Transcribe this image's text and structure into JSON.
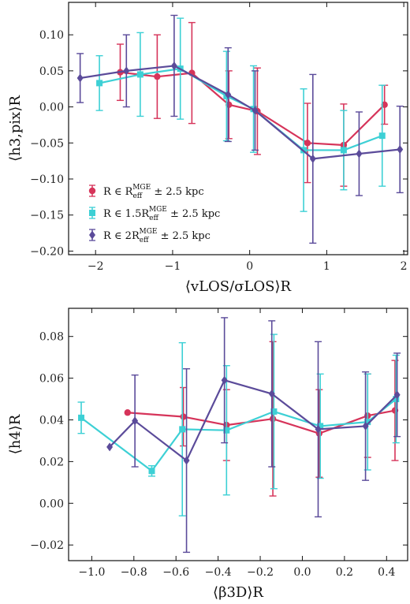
{
  "chart_data": [
    {
      "type": "line",
      "xlabel": "⟨vLOS/σLOS⟩R",
      "ylabel": "⟨h3,pix⟩R",
      "xlim": [
        -2.35,
        2.05
      ],
      "ylim": [
        -0.205,
        0.145
      ],
      "xticks": [
        -2,
        -1,
        0,
        1,
        2
      ],
      "xtick_labels": [
        "−2",
        "−1",
        "0",
        "1",
        "2"
      ],
      "yticks": [
        -0.2,
        -0.15,
        -0.1,
        -0.05,
        0.0,
        0.05,
        0.1
      ],
      "ytick_labels": [
        "−0.20",
        "−0.15",
        "−0.10",
        "−0.05",
        "0.00",
        "0.05",
        "0.10"
      ],
      "legend_position": "lower-left",
      "series": [
        {
          "name": "R ∈ R_eff^MGE ± 2.5 kpc",
          "legend_parts": [
            "R ∈ R",
            "eff",
            "MGE",
            " ± 2.5 kpc"
          ],
          "color": "#d6345a",
          "marker": "circle",
          "x": [
            -1.68,
            -1.2,
            -0.75,
            -0.27,
            0.1,
            0.75,
            1.22,
            1.75
          ],
          "y": [
            0.048,
            0.042,
            0.047,
            0.003,
            -0.006,
            -0.05,
            -0.053,
            0.003
          ],
          "err": [
            0.039,
            0.058,
            0.07,
            0.047,
            0.06,
            0.055,
            0.057,
            0.027
          ]
        },
        {
          "name": "R ∈ 1.5R_eff^MGE ± 2.5 kpc",
          "legend_parts": [
            "R ∈ 1.5R",
            "eff",
            "MGE",
            " ± 2.5 kpc"
          ],
          "color": "#3dd0d5",
          "marker": "square",
          "x": [
            -1.95,
            -1.42,
            -0.9,
            -0.3,
            0.05,
            0.7,
            1.22,
            1.72
          ],
          "y": [
            0.033,
            0.045,
            0.053,
            0.015,
            -0.003,
            -0.06,
            -0.06,
            -0.04
          ],
          "err": [
            0.038,
            0.058,
            0.07,
            0.062,
            0.06,
            0.085,
            0.055,
            0.07
          ]
        },
        {
          "name": "R ∈ 2R_eff^MGE ± 2.5 kpc",
          "legend_parts": [
            "R ∈ 2R",
            "eff",
            "MGE",
            " ± 2.5 kpc"
          ],
          "color": "#5b4b9a",
          "marker": "diamond",
          "x": [
            -2.2,
            -1.6,
            -0.98,
            -0.28,
            0.07,
            0.82,
            1.42,
            1.95
          ],
          "y": [
            0.04,
            0.05,
            0.057,
            0.017,
            -0.005,
            -0.072,
            -0.065,
            -0.059
          ],
          "err": [
            0.034,
            0.05,
            0.07,
            0.065,
            0.055,
            0.117,
            0.058,
            0.06
          ]
        }
      ]
    },
    {
      "type": "line",
      "xlabel": "⟨β3D⟩R",
      "ylabel": "⟨h4⟩R",
      "xlim": [
        -1.11,
        0.5
      ],
      "ylim": [
        -0.0275,
        0.0935
      ],
      "xticks": [
        -1.0,
        -0.8,
        -0.6,
        -0.4,
        -0.2,
        0.0,
        0.2,
        0.4
      ],
      "xtick_labels": [
        "−1.0",
        "−0.8",
        "−0.6",
        "−0.4",
        "−0.2",
        "0.0",
        "0.2",
        "0.4"
      ],
      "yticks": [
        -0.02,
        0.0,
        0.02,
        0.04,
        0.06,
        0.08
      ],
      "ytick_labels": [
        "−0.02",
        "0.00",
        "0.02",
        "0.04",
        "0.06",
        "0.08"
      ],
      "series": [
        {
          "name": "R ∈ R_eff^MGE ± 2.5 kpc",
          "color": "#d6345a",
          "marker": "circle",
          "x": [
            -0.83,
            -0.565,
            -0.36,
            -0.14,
            0.08,
            0.31,
            0.44
          ],
          "y": [
            0.0435,
            0.0415,
            0.0375,
            0.0405,
            0.0335,
            0.042,
            0.0445
          ],
          "err": [
            null,
            0.014,
            0.017,
            0.037,
            0.021,
            0.02,
            0.024
          ]
        },
        {
          "name": "R ∈ 1.5R_eff^MGE ± 2.5 kpc",
          "color": "#3dd0d5",
          "marker": "square",
          "x": [
            -1.05,
            -0.715,
            -0.57,
            -0.36,
            -0.135,
            0.085,
            0.31,
            0.445
          ],
          "y": [
            0.041,
            0.0155,
            0.0355,
            0.035,
            0.044,
            0.037,
            0.039,
            0.05
          ],
          "err": [
            0.0075,
            0.0025,
            0.0415,
            0.031,
            0.037,
            0.025,
            0.023,
            0.021
          ]
        },
        {
          "name": "R ∈ 2R_eff^MGE ± 2.5 kpc",
          "color": "#5b4b9a",
          "marker": "diamond",
          "x": [
            -0.915,
            -0.795,
            -0.55,
            -0.37,
            -0.145,
            0.075,
            0.3,
            0.45
          ],
          "y": [
            0.027,
            0.0395,
            0.0205,
            0.059,
            0.0525,
            0.0355,
            0.037,
            0.052
          ],
          "err": [
            null,
            0.022,
            0.044,
            0.03,
            0.035,
            0.042,
            0.026,
            0.02
          ]
        }
      ]
    }
  ]
}
